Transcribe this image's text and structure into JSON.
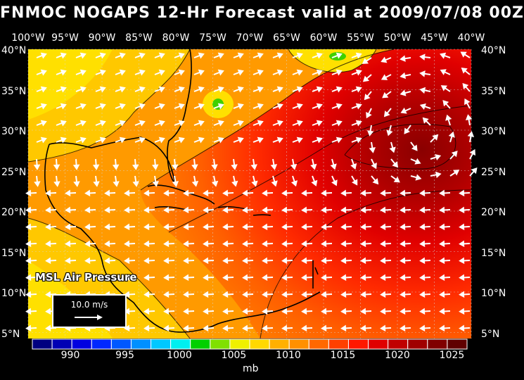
{
  "title": "FNMOC NOGAPS 12-Hr Forecast valid at 2009/07/08 00Z",
  "variable_label": "MSL Air Pressure",
  "reference_vector_label": "10.0 m/s",
  "longitude_labels": [
    "100°W",
    "95°W",
    "90°W",
    "85°W",
    "80°W",
    "75°W",
    "70°W",
    "65°W",
    "60°W",
    "55°W",
    "50°W",
    "45°W",
    "40°W"
  ],
  "latitude_labels": [
    "40°N",
    "35°N",
    "30°N",
    "25°N",
    "20°N",
    "15°N",
    "10°N",
    "5°N"
  ],
  "colorbar": {
    "labels": [
      "990",
      "995",
      "1000",
      "1005",
      "1010",
      "1015",
      "1020",
      "1025"
    ],
    "units": "mb",
    "colors": [
      "#000080",
      "#0000b4",
      "#0000e0",
      "#0028ff",
      "#0058ff",
      "#0090ff",
      "#00c8ff",
      "#00f0f0",
      "#00d000",
      "#80e000",
      "#f0f000",
      "#ffd800",
      "#ffb000",
      "#ff9000",
      "#ff6800",
      "#ff4000",
      "#ff1800",
      "#e00000",
      "#c00000",
      "#a00000",
      "#800000",
      "#600000"
    ]
  }
}
